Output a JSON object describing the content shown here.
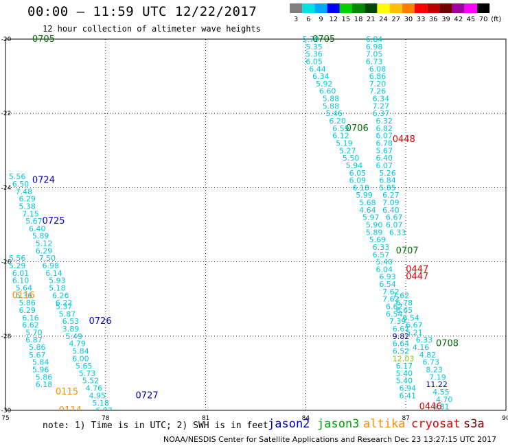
{
  "header": {
    "title": "00:00 — 11:59 UTC 12/22/2017",
    "subtitle": "12 hour collection of altimeter wave heights"
  },
  "colorbar": {
    "stops": [
      {
        "label": "3",
        "color": "#808080"
      },
      {
        "label": "6",
        "color": "#00e0e0"
      },
      {
        "label": "9",
        "color": "#00a8ff"
      },
      {
        "label": "12",
        "color": "#0000ff"
      },
      {
        "label": "15",
        "color": "#00d000"
      },
      {
        "label": "18",
        "color": "#008800"
      },
      {
        "label": "21",
        "color": "#004800"
      },
      {
        "label": "24",
        "color": "#ffff00"
      },
      {
        "label": "27",
        "color": "#ffc000"
      },
      {
        "label": "30",
        "color": "#ff8000"
      },
      {
        "label": "33",
        "color": "#ff0000"
      },
      {
        "label": "36",
        "color": "#c00000"
      },
      {
        "label": "39",
        "color": "#700000"
      },
      {
        "label": "42",
        "color": "#a000a0"
      },
      {
        "label": "45",
        "color": "#ff00ff"
      },
      {
        "label": "70",
        "color": "#000000"
      }
    ],
    "unit": "(ft)"
  },
  "axes": {
    "lon_range": [
      75,
      90
    ],
    "lat_range": [
      -30,
      -20
    ],
    "x_ticks": [
      "75",
      "78",
      "81",
      "84",
      "87",
      "90"
    ],
    "y_ticks": [
      "-20",
      "-22",
      "-24",
      "-26",
      "-28",
      "-30"
    ],
    "grid": true
  },
  "colors": {
    "cyan": "#00c8d8",
    "blue": "#0000c8",
    "darkgreen": "#007000",
    "green": "#00a000",
    "orange": "#ff8c00",
    "red": "#e00000",
    "lightgreen": "#80d000"
  },
  "track_labels": [
    {
      "lon": 75.8,
      "lat": -20.0,
      "text": "0705",
      "color": "darkgreen"
    },
    {
      "lon": 75.8,
      "lat": -23.8,
      "text": "0724",
      "color": "blue"
    },
    {
      "lon": 76.1,
      "lat": -24.9,
      "text": "0725",
      "color": "blue"
    },
    {
      "lon": 75.2,
      "lat": -26.9,
      "text": "0116",
      "color": "orange"
    },
    {
      "lon": 77.5,
      "lat": -27.6,
      "text": "0726",
      "color": "blue"
    },
    {
      "lon": 76.5,
      "lat": -29.5,
      "text": "0115",
      "color": "orange"
    },
    {
      "lon": 76.6,
      "lat": -30.0,
      "text": "0114",
      "color": "orange"
    },
    {
      "lon": 78.9,
      "lat": -29.6,
      "text": "0727",
      "color": "blue"
    },
    {
      "lon": 84.2,
      "lat": -20.0,
      "text": "0705",
      "color": "darkgreen"
    },
    {
      "lon": 85.2,
      "lat": -22.4,
      "text": "0706",
      "color": "darkgreen"
    },
    {
      "lon": 86.6,
      "lat": -22.7,
      "text": "0448",
      "color": "red"
    },
    {
      "lon": 86.7,
      "lat": -25.7,
      "text": "0707",
      "color": "darkgreen"
    },
    {
      "lon": 87.0,
      "lat": -26.2,
      "text": "0447",
      "color": "red"
    },
    {
      "lon": 87.0,
      "lat": -26.4,
      "text": "0447",
      "color": "red"
    },
    {
      "lon": 87.9,
      "lat": -28.2,
      "text": "0708",
      "color": "darkgreen"
    },
    {
      "lon": 87.4,
      "lat": -29.9,
      "text": "0446",
      "color": "red"
    }
  ],
  "swh_points": [
    {
      "lon": 83.9,
      "lat": -20.0,
      "v": "5.79",
      "color": "cyan"
    },
    {
      "lon": 84.0,
      "lat": -20.2,
      "v": "5.35",
      "color": "cyan"
    },
    {
      "lon": 84.0,
      "lat": -20.4,
      "v": "5.36",
      "color": "cyan"
    },
    {
      "lon": 84.0,
      "lat": -20.6,
      "v": "6.05",
      "color": "cyan"
    },
    {
      "lon": 84.1,
      "lat": -20.8,
      "v": "6.44",
      "color": "cyan"
    },
    {
      "lon": 84.2,
      "lat": -21.0,
      "v": "6.34",
      "color": "cyan"
    },
    {
      "lon": 84.3,
      "lat": -21.2,
      "v": "5.92",
      "color": "cyan"
    },
    {
      "lon": 84.4,
      "lat": -21.4,
      "v": "6.60",
      "color": "cyan"
    },
    {
      "lon": 84.5,
      "lat": -21.6,
      "v": "5.88",
      "color": "cyan"
    },
    {
      "lon": 84.5,
      "lat": -21.8,
      "v": "5.88",
      "color": "cyan"
    },
    {
      "lon": 84.6,
      "lat": -22.0,
      "v": "5.46",
      "color": "cyan"
    },
    {
      "lon": 84.7,
      "lat": -22.2,
      "v": "6.20",
      "color": "cyan"
    },
    {
      "lon": 84.8,
      "lat": -22.4,
      "v": "6.59",
      "color": "cyan"
    },
    {
      "lon": 84.8,
      "lat": -22.6,
      "v": "6.12",
      "color": "cyan"
    },
    {
      "lon": 84.9,
      "lat": -22.8,
      "v": "5.19",
      "color": "cyan"
    },
    {
      "lon": 85.0,
      "lat": -23.0,
      "v": "5.27",
      "color": "cyan"
    },
    {
      "lon": 85.1,
      "lat": -23.2,
      "v": "5.50",
      "color": "cyan"
    },
    {
      "lon": 85.2,
      "lat": -23.4,
      "v": "5.94",
      "color": "cyan"
    },
    {
      "lon": 85.3,
      "lat": -23.6,
      "v": "6.05",
      "color": "cyan"
    },
    {
      "lon": 85.3,
      "lat": -23.8,
      "v": "6.09",
      "color": "cyan"
    },
    {
      "lon": 85.4,
      "lat": -24.0,
      "v": "6.18",
      "color": "cyan"
    },
    {
      "lon": 85.5,
      "lat": -24.2,
      "v": "5.99",
      "color": "cyan"
    },
    {
      "lon": 85.6,
      "lat": -24.4,
      "v": "5.68",
      "color": "cyan"
    },
    {
      "lon": 85.6,
      "lat": -24.6,
      "v": "4.64",
      "color": "cyan"
    },
    {
      "lon": 85.7,
      "lat": -24.8,
      "v": "5.97",
      "color": "cyan"
    },
    {
      "lon": 85.8,
      "lat": -25.0,
      "v": "5.90",
      "color": "cyan"
    },
    {
      "lon": 85.8,
      "lat": -25.2,
      "v": "5.89",
      "color": "cyan"
    },
    {
      "lon": 85.9,
      "lat": -25.4,
      "v": "5.69",
      "color": "cyan"
    },
    {
      "lon": 86.0,
      "lat": -25.6,
      "v": "6.33",
      "color": "cyan"
    },
    {
      "lon": 86.0,
      "lat": -25.8,
      "v": "6.57",
      "color": "cyan"
    },
    {
      "lon": 86.1,
      "lat": -26.0,
      "v": "5.40",
      "color": "cyan"
    },
    {
      "lon": 86.1,
      "lat": -26.2,
      "v": "6.04",
      "color": "cyan"
    },
    {
      "lon": 86.2,
      "lat": -26.4,
      "v": "6.93",
      "color": "cyan"
    },
    {
      "lon": 86.2,
      "lat": -26.6,
      "v": "6.54",
      "color": "cyan"
    },
    {
      "lon": 86.3,
      "lat": -26.8,
      "v": "7.62",
      "color": "cyan"
    },
    {
      "lon": 86.3,
      "lat": -27.0,
      "v": "7.62",
      "color": "cyan"
    },
    {
      "lon": 86.4,
      "lat": -27.2,
      "v": "6.62",
      "color": "cyan"
    },
    {
      "lon": 86.4,
      "lat": -27.4,
      "v": "6.54",
      "color": "cyan"
    },
    {
      "lon": 86.5,
      "lat": -27.6,
      "v": "7.39",
      "color": "cyan"
    },
    {
      "lon": 86.6,
      "lat": -27.8,
      "v": "6.67",
      "color": "cyan"
    },
    {
      "lon": 86.6,
      "lat": -28.0,
      "v": "9.82",
      "color": "blue"
    },
    {
      "lon": 86.6,
      "lat": -28.2,
      "v": "6.64",
      "color": "cyan"
    },
    {
      "lon": 86.6,
      "lat": -28.4,
      "v": "6.52",
      "color": "cyan"
    },
    {
      "lon": 86.6,
      "lat": -28.6,
      "v": "12.03",
      "color": "lightgreen"
    },
    {
      "lon": 86.7,
      "lat": -28.8,
      "v": "6.17",
      "color": "cyan"
    },
    {
      "lon": 86.7,
      "lat": -29.0,
      "v": "5.40",
      "color": "cyan"
    },
    {
      "lon": 86.7,
      "lat": -29.2,
      "v": "5.40",
      "color": "cyan"
    },
    {
      "lon": 86.8,
      "lat": -29.4,
      "v": "6.94",
      "color": "cyan"
    },
    {
      "lon": 86.8,
      "lat": -29.6,
      "v": "6.41",
      "color": "cyan"
    },
    {
      "lon": 85.8,
      "lat": -20.0,
      "v": "6.84",
      "color": "cyan"
    },
    {
      "lon": 85.8,
      "lat": -20.2,
      "v": "6.98",
      "color": "cyan"
    },
    {
      "lon": 85.8,
      "lat": -20.4,
      "v": "7.05",
      "color": "cyan"
    },
    {
      "lon": 85.8,
      "lat": -20.6,
      "v": "6.73",
      "color": "cyan"
    },
    {
      "lon": 85.9,
      "lat": -20.8,
      "v": "6.08",
      "color": "cyan"
    },
    {
      "lon": 85.9,
      "lat": -21.0,
      "v": "6.86",
      "color": "cyan"
    },
    {
      "lon": 85.9,
      "lat": -21.2,
      "v": "7.20",
      "color": "cyan"
    },
    {
      "lon": 85.9,
      "lat": -21.4,
      "v": "7.26",
      "color": "cyan"
    },
    {
      "lon": 86.0,
      "lat": -21.6,
      "v": "6.34",
      "color": "cyan"
    },
    {
      "lon": 86.0,
      "lat": -21.8,
      "v": "7.27",
      "color": "cyan"
    },
    {
      "lon": 86.0,
      "lat": -22.0,
      "v": "6.37",
      "color": "cyan"
    },
    {
      "lon": 86.1,
      "lat": -22.2,
      "v": "6.32",
      "color": "cyan"
    },
    {
      "lon": 86.1,
      "lat": -22.4,
      "v": "6.82",
      "color": "cyan"
    },
    {
      "lon": 86.1,
      "lat": -22.6,
      "v": "6.07",
      "color": "cyan"
    },
    {
      "lon": 86.1,
      "lat": -22.8,
      "v": "6.78",
      "color": "cyan"
    },
    {
      "lon": 86.1,
      "lat": -23.0,
      "v": "5.67",
      "color": "cyan"
    },
    {
      "lon": 86.1,
      "lat": -23.2,
      "v": "6.40",
      "color": "cyan"
    },
    {
      "lon": 86.1,
      "lat": -23.4,
      "v": "6.07",
      "color": "cyan"
    },
    {
      "lon": 86.2,
      "lat": -23.6,
      "v": "5.26",
      "color": "cyan"
    },
    {
      "lon": 86.2,
      "lat": -23.8,
      "v": "6.84",
      "color": "cyan"
    },
    {
      "lon": 86.2,
      "lat": -24.0,
      "v": "5.85",
      "color": "cyan"
    },
    {
      "lon": 86.3,
      "lat": -24.2,
      "v": "6.27",
      "color": "cyan"
    },
    {
      "lon": 86.3,
      "lat": -24.4,
      "v": "7.09",
      "color": "cyan"
    },
    {
      "lon": 86.3,
      "lat": -24.6,
      "v": "6.40",
      "color": "cyan"
    },
    {
      "lon": 86.4,
      "lat": -24.8,
      "v": "6.67",
      "color": "cyan"
    },
    {
      "lon": 86.4,
      "lat": -25.0,
      "v": "6.07",
      "color": "cyan"
    },
    {
      "lon": 86.5,
      "lat": -25.2,
      "v": "6.33",
      "color": "cyan"
    },
    {
      "lon": 86.6,
      "lat": -26.9,
      "v": "7.62",
      "color": "cyan"
    },
    {
      "lon": 86.7,
      "lat": -27.1,
      "v": "6.78",
      "color": "cyan"
    },
    {
      "lon": 86.7,
      "lat": -27.3,
      "v": "6.65",
      "color": "cyan"
    },
    {
      "lon": 86.9,
      "lat": -27.5,
      "v": "6.54",
      "color": "cyan"
    },
    {
      "lon": 87.0,
      "lat": -27.7,
      "v": "6.67",
      "color": "cyan"
    },
    {
      "lon": 87.0,
      "lat": -27.9,
      "v": "5.21",
      "color": "cyan"
    },
    {
      "lon": 87.3,
      "lat": -28.1,
      "v": "6.33",
      "color": "cyan"
    },
    {
      "lon": 87.2,
      "lat": -28.3,
      "v": "4.16",
      "color": "cyan"
    },
    {
      "lon": 87.4,
      "lat": -28.5,
      "v": "4.82",
      "color": "cyan"
    },
    {
      "lon": 87.5,
      "lat": -28.7,
      "v": "6.73",
      "color": "cyan"
    },
    {
      "lon": 87.6,
      "lat": -28.9,
      "v": "8.23",
      "color": "cyan"
    },
    {
      "lon": 87.7,
      "lat": -29.1,
      "v": "7.19",
      "color": "cyan"
    },
    {
      "lon": 87.6,
      "lat": -29.3,
      "v": "11.22",
      "color": "blue"
    },
    {
      "lon": 87.8,
      "lat": -29.5,
      "v": "4.55",
      "color": "cyan"
    },
    {
      "lon": 87.9,
      "lat": -29.7,
      "v": "4.70",
      "color": "cyan"
    },
    {
      "lon": 87.8,
      "lat": -29.9,
      "v": "6.81",
      "color": "cyan"
    },
    {
      "lon": 75.1,
      "lat": -23.7,
      "v": "5.56",
      "color": "cyan"
    },
    {
      "lon": 75.2,
      "lat": -23.9,
      "v": "6.50",
      "color": "cyan"
    },
    {
      "lon": 75.3,
      "lat": -24.1,
      "v": "7.48",
      "color": "cyan"
    },
    {
      "lon": 75.4,
      "lat": -24.3,
      "v": "6.29",
      "color": "cyan"
    },
    {
      "lon": 75.4,
      "lat": -24.5,
      "v": "5.38",
      "color": "cyan"
    },
    {
      "lon": 75.5,
      "lat": -24.7,
      "v": "7.15",
      "color": "cyan"
    },
    {
      "lon": 75.6,
      "lat": -24.9,
      "v": "5.67",
      "color": "cyan"
    },
    {
      "lon": 75.7,
      "lat": -25.1,
      "v": "6.40",
      "color": "cyan"
    },
    {
      "lon": 75.8,
      "lat": -25.3,
      "v": "5.89",
      "color": "cyan"
    },
    {
      "lon": 75.9,
      "lat": -25.5,
      "v": "5.12",
      "color": "cyan"
    },
    {
      "lon": 75.9,
      "lat": -25.7,
      "v": "6.29",
      "color": "cyan"
    },
    {
      "lon": 76.0,
      "lat": -25.9,
      "v": "7.50",
      "color": "cyan"
    },
    {
      "lon": 76.1,
      "lat": -26.1,
      "v": "6.98",
      "color": "cyan"
    },
    {
      "lon": 76.2,
      "lat": -26.3,
      "v": "6.14",
      "color": "cyan"
    },
    {
      "lon": 76.3,
      "lat": -26.5,
      "v": "5.93",
      "color": "cyan"
    },
    {
      "lon": 76.3,
      "lat": -26.7,
      "v": "5.18",
      "color": "cyan"
    },
    {
      "lon": 76.4,
      "lat": -26.9,
      "v": "6.26",
      "color": "cyan"
    },
    {
      "lon": 76.5,
      "lat": -27.1,
      "v": "6.22",
      "color": "cyan"
    },
    {
      "lon": 76.5,
      "lat": -27.2,
      "v": "5.37",
      "color": "cyan"
    },
    {
      "lon": 76.6,
      "lat": -27.4,
      "v": "5.87",
      "color": "cyan"
    },
    {
      "lon": 76.7,
      "lat": -27.6,
      "v": "6.53",
      "color": "cyan"
    },
    {
      "lon": 76.7,
      "lat": -27.8,
      "v": "3.89",
      "color": "cyan"
    },
    {
      "lon": 76.8,
      "lat": -28.0,
      "v": "5.49",
      "color": "cyan"
    },
    {
      "lon": 76.9,
      "lat": -28.2,
      "v": "4.79",
      "color": "cyan"
    },
    {
      "lon": 77.0,
      "lat": -28.4,
      "v": "5.84",
      "color": "cyan"
    },
    {
      "lon": 77.0,
      "lat": -28.6,
      "v": "6.00",
      "color": "cyan"
    },
    {
      "lon": 77.1,
      "lat": -28.8,
      "v": "5.65",
      "color": "cyan"
    },
    {
      "lon": 77.2,
      "lat": -29.0,
      "v": "5.73",
      "color": "cyan"
    },
    {
      "lon": 77.3,
      "lat": -29.2,
      "v": "5.52",
      "color": "cyan"
    },
    {
      "lon": 77.4,
      "lat": -29.4,
      "v": "4.76",
      "color": "cyan"
    },
    {
      "lon": 77.5,
      "lat": -29.6,
      "v": "4.95",
      "color": "cyan"
    },
    {
      "lon": 77.6,
      "lat": -29.8,
      "v": "5.18",
      "color": "cyan"
    },
    {
      "lon": 77.7,
      "lat": -30.0,
      "v": "6.07",
      "color": "cyan"
    },
    {
      "lon": 77.8,
      "lat": -30.2,
      "v": "4.79",
      "color": "cyan"
    },
    {
      "lon": 77.9,
      "lat": -30.4,
      "v": "5.44",
      "color": "cyan"
    },
    {
      "lon": 78.0,
      "lat": -30.6,
      "v": "4.93",
      "color": "cyan"
    },
    {
      "lon": 78.1,
      "lat": -30.8,
      "v": "4.68",
      "color": "cyan"
    },
    {
      "lon": 78.2,
      "lat": -31.0,
      "v": "4.52",
      "color": "cyan"
    },
    {
      "lon": 78.3,
      "lat": -31.2,
      "v": "5.69",
      "color": "cyan"
    },
    {
      "lon": 75.1,
      "lat": -25.9,
      "v": "5.56",
      "color": "cyan"
    },
    {
      "lon": 75.1,
      "lat": -26.1,
      "v": "5.29",
      "color": "cyan"
    },
    {
      "lon": 75.2,
      "lat": -26.3,
      "v": "6.01",
      "color": "cyan"
    },
    {
      "lon": 75.2,
      "lat": -26.5,
      "v": "6.10",
      "color": "cyan"
    },
    {
      "lon": 75.3,
      "lat": -26.7,
      "v": "5.64",
      "color": "cyan"
    },
    {
      "lon": 75.3,
      "lat": -26.9,
      "v": "6.36",
      "color": "cyan"
    },
    {
      "lon": 75.4,
      "lat": -27.1,
      "v": "5.86",
      "color": "cyan"
    },
    {
      "lon": 75.4,
      "lat": -27.3,
      "v": "6.29",
      "color": "cyan"
    },
    {
      "lon": 75.5,
      "lat": -27.5,
      "v": "6.16",
      "color": "cyan"
    },
    {
      "lon": 75.5,
      "lat": -27.7,
      "v": "6.62",
      "color": "cyan"
    },
    {
      "lon": 75.6,
      "lat": -27.9,
      "v": "5.70",
      "color": "cyan"
    },
    {
      "lon": 75.6,
      "lat": -28.1,
      "v": "6.87",
      "color": "cyan"
    },
    {
      "lon": 75.7,
      "lat": -28.3,
      "v": "5.86",
      "color": "cyan"
    },
    {
      "lon": 75.7,
      "lat": -28.5,
      "v": "5.67",
      "color": "cyan"
    },
    {
      "lon": 75.8,
      "lat": -28.7,
      "v": "5.84",
      "color": "cyan"
    },
    {
      "lon": 75.8,
      "lat": -28.9,
      "v": "5.96",
      "color": "cyan"
    },
    {
      "lon": 75.9,
      "lat": -29.1,
      "v": "5.86",
      "color": "cyan"
    },
    {
      "lon": 75.9,
      "lat": -29.3,
      "v": "6.18",
      "color": "cyan"
    }
  ],
  "note": "note: 1) Time is in UTC; 2) SWH is in feet",
  "legend": [
    {
      "label": "jason2",
      "color": "#0000c8"
    },
    {
      "label": "jason3",
      "color": "#00a000"
    },
    {
      "label": "altika",
      "color": "#ff8c00"
    },
    {
      "label": "cryosat",
      "color": "#e00000"
    },
    {
      "label": "s3a",
      "color": "#800000"
    }
  ],
  "footer": "NOAA/NESDIS Center for Satellite Applications and Research    Dec 23 13:27:15 UTC 2017"
}
